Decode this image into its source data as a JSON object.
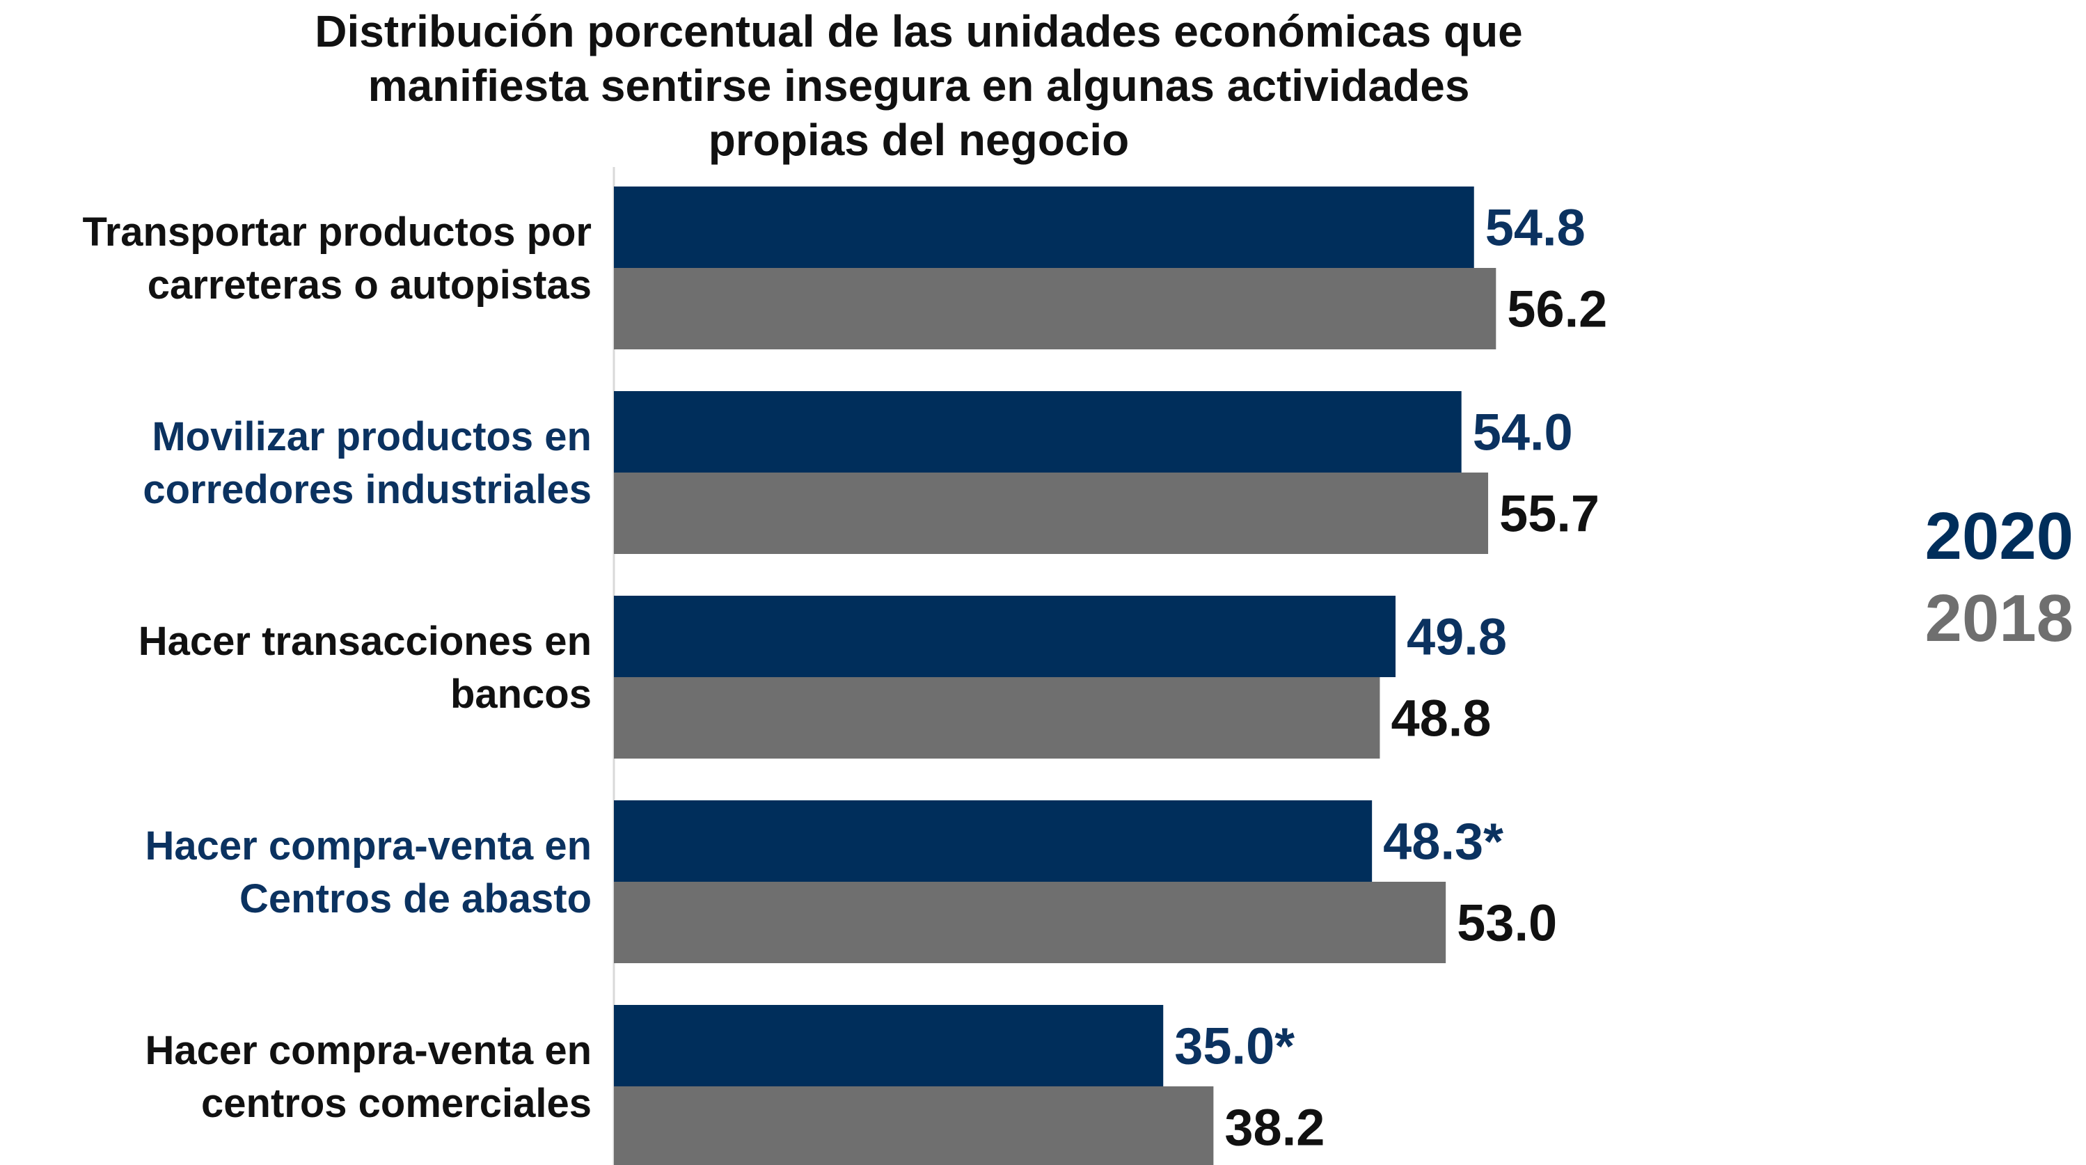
{
  "chart_data": {
    "type": "bar",
    "orientation": "horizontal",
    "title": [
      "Distribución porcentual de las unidades económicas que",
      "manifiesta sentirse insegura en algunas actividades",
      "propias del negocio"
    ],
    "categories": [
      "Transportar productos por carreteras o autopistas",
      "Movilizar productos en corredores industriales",
      "Hacer transacciones en bancos",
      "Hacer compra-venta en Centros de abasto",
      "Hacer compra-venta en centros comerciales"
    ],
    "category_lines": [
      [
        "Transportar productos por",
        "carreteras o autopistas"
      ],
      [
        "Movilizar productos en",
        "corredores industriales"
      ],
      [
        "Hacer transacciones en",
        "bancos"
      ],
      [
        "Hacer compra-venta en",
        "Centros de abasto"
      ],
      [
        "Hacer compra-venta en",
        "centros comerciales"
      ]
    ],
    "category_label_colors": [
      "#111111",
      "#0b3260",
      "#111111",
      "#0b3260",
      "#111111"
    ],
    "series": [
      {
        "name": "2020",
        "values": [
          54.8,
          54.0,
          49.8,
          48.3,
          35.0
        ],
        "value_labels": [
          "54.8",
          "54.0",
          "49.8",
          "48.3*",
          "35.0*"
        ],
        "color": "#002e5b",
        "label_color": "#0b3260"
      },
      {
        "name": "2018",
        "values": [
          56.2,
          55.7,
          48.8,
          53.0,
          38.2
        ],
        "value_labels": [
          "56.2",
          "55.7",
          "48.8",
          "53.0",
          "38.2"
        ],
        "color": "#6f6f6f",
        "label_color": "#111111"
      }
    ],
    "legend_position": "right",
    "grid": false
  }
}
